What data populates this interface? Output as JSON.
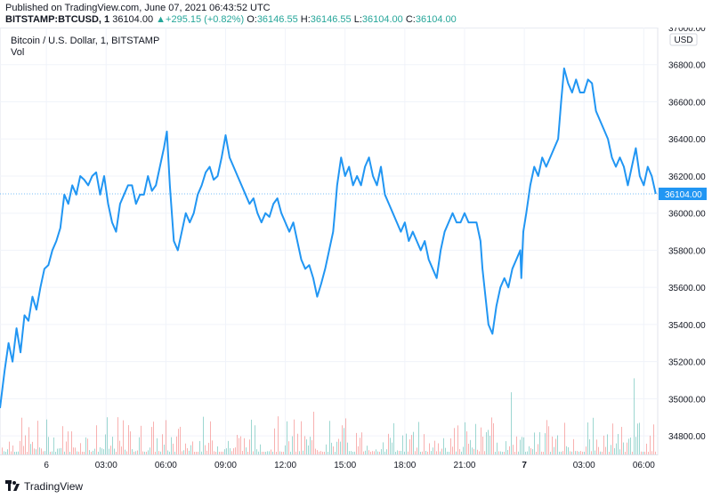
{
  "header": {
    "published": "Published on TradingView.com, June 07, 2021 06:43:52 UTC",
    "symbol": "BITSTAMP:BTCUSD, 1",
    "last": "36104.00",
    "change": "+295.15 (+0.82%)",
    "open_label": "O:",
    "open": "36146.55",
    "high_label": "H:",
    "high": "36146.55",
    "low_label": "L:",
    "low": "36104.00",
    "close_label": "C:",
    "close": "36104.00"
  },
  "legend": {
    "title": "Bitcoin / U.S. Dollar, 1, BITSTAMP",
    "vol": "Vol"
  },
  "brand": {
    "name": "TradingView"
  },
  "colors": {
    "line": "#2196f3",
    "up": "#26a69a",
    "down": "#ef5350",
    "grid": "#f0f3fa",
    "axis_text": "#131722"
  },
  "chart_data": {
    "type": "line",
    "title": "Bitcoin / U.S. Dollar, 1, BITSTAMP",
    "currency": "USD",
    "last_price": 36104.0,
    "last_price_label": "36104.00",
    "ylim": [
      34700,
      37000
    ],
    "y_ticks": [
      34800,
      35000,
      35200,
      35400,
      35600,
      35800,
      36000,
      36200,
      36400,
      36600,
      36800,
      37000
    ],
    "y_tick_labels": [
      "34800.00",
      "35000.00",
      "35200.00",
      "35400.00",
      "35600.00",
      "35800.00",
      "36000.00",
      "36200.00",
      "36400.00",
      "36600.00",
      "36800.00",
      "37000.00"
    ],
    "x_ticks": [
      {
        "t": 1.0,
        "label": "6",
        "bold": false
      },
      {
        "t": 4.0,
        "label": "03:00",
        "bold": false
      },
      {
        "t": 7.0,
        "label": "06:00",
        "bold": false
      },
      {
        "t": 10.0,
        "label": "09:00",
        "bold": false
      },
      {
        "t": 13.0,
        "label": "12:00",
        "bold": false
      },
      {
        "t": 16.0,
        "label": "15:00",
        "bold": false
      },
      {
        "t": 19.0,
        "label": "18:00",
        "bold": false
      },
      {
        "t": 22.0,
        "label": "21:00",
        "bold": false
      },
      {
        "t": 25.0,
        "label": "7",
        "bold": true
      },
      {
        "t": 28.0,
        "label": "03:00",
        "bold": false
      },
      {
        "t": 31.0,
        "label": "06:00",
        "bold": false
      }
    ],
    "xlim": [
      -1.33,
      31.7
    ],
    "series": [
      {
        "name": "BTCUSD",
        "points": [
          [
            -1.33,
            34950
          ],
          [
            -1.1,
            35150
          ],
          [
            -0.9,
            35300
          ],
          [
            -0.7,
            35200
          ],
          [
            -0.5,
            35380
          ],
          [
            -0.3,
            35250
          ],
          [
            -0.1,
            35450
          ],
          [
            0.1,
            35420
          ],
          [
            0.3,
            35550
          ],
          [
            0.5,
            35480
          ],
          [
            0.7,
            35600
          ],
          [
            0.9,
            35700
          ],
          [
            1.1,
            35720
          ],
          [
            1.3,
            35800
          ],
          [
            1.5,
            35850
          ],
          [
            1.7,
            35920
          ],
          [
            1.9,
            36100
          ],
          [
            2.1,
            36050
          ],
          [
            2.3,
            36150
          ],
          [
            2.5,
            36100
          ],
          [
            2.7,
            36200
          ],
          [
            2.9,
            36180
          ],
          [
            3.1,
            36150
          ],
          [
            3.3,
            36200
          ],
          [
            3.5,
            36220
          ],
          [
            3.7,
            36100
          ],
          [
            3.9,
            36200
          ],
          [
            4.1,
            36050
          ],
          [
            4.3,
            35950
          ],
          [
            4.5,
            35900
          ],
          [
            4.7,
            36050
          ],
          [
            4.9,
            36100
          ],
          [
            5.1,
            36150
          ],
          [
            5.3,
            36150
          ],
          [
            5.5,
            36050
          ],
          [
            5.7,
            36100
          ],
          [
            5.9,
            36100
          ],
          [
            6.1,
            36200
          ],
          [
            6.3,
            36120
          ],
          [
            6.5,
            36150
          ],
          [
            6.7,
            36250
          ],
          [
            6.9,
            36350
          ],
          [
            7.05,
            36440
          ],
          [
            7.2,
            36150
          ],
          [
            7.4,
            35850
          ],
          [
            7.6,
            35800
          ],
          [
            7.8,
            35900
          ],
          [
            8.0,
            36000
          ],
          [
            8.2,
            35950
          ],
          [
            8.4,
            36000
          ],
          [
            8.6,
            36100
          ],
          [
            8.8,
            36150
          ],
          [
            9.0,
            36220
          ],
          [
            9.2,
            36250
          ],
          [
            9.4,
            36180
          ],
          [
            9.6,
            36200
          ],
          [
            9.8,
            36300
          ],
          [
            10.0,
            36420
          ],
          [
            10.2,
            36300
          ],
          [
            10.4,
            36250
          ],
          [
            10.6,
            36200
          ],
          [
            10.8,
            36150
          ],
          [
            11.0,
            36100
          ],
          [
            11.2,
            36050
          ],
          [
            11.4,
            36080
          ],
          [
            11.6,
            36000
          ],
          [
            11.8,
            35950
          ],
          [
            12.0,
            36000
          ],
          [
            12.2,
            35980
          ],
          [
            12.4,
            36050
          ],
          [
            12.6,
            36080
          ],
          [
            12.8,
            36000
          ],
          [
            13.0,
            35950
          ],
          [
            13.2,
            35900
          ],
          [
            13.4,
            35950
          ],
          [
            13.6,
            35850
          ],
          [
            13.8,
            35750
          ],
          [
            14.0,
            35700
          ],
          [
            14.2,
            35720
          ],
          [
            14.4,
            35650
          ],
          [
            14.6,
            35550
          ],
          [
            14.8,
            35620
          ],
          [
            15.0,
            35700
          ],
          [
            15.2,
            35800
          ],
          [
            15.4,
            35900
          ],
          [
            15.5,
            36020
          ],
          [
            15.6,
            36150
          ],
          [
            15.8,
            36300
          ],
          [
            16.0,
            36200
          ],
          [
            16.2,
            36250
          ],
          [
            16.4,
            36150
          ],
          [
            16.6,
            36200
          ],
          [
            16.8,
            36150
          ],
          [
            17.0,
            36250
          ],
          [
            17.2,
            36300
          ],
          [
            17.4,
            36200
          ],
          [
            17.6,
            36150
          ],
          [
            17.8,
            36250
          ],
          [
            18.0,
            36100
          ],
          [
            18.2,
            36050
          ],
          [
            18.4,
            36000
          ],
          [
            18.6,
            35950
          ],
          [
            18.8,
            35900
          ],
          [
            19.0,
            35950
          ],
          [
            19.2,
            35850
          ],
          [
            19.4,
            35900
          ],
          [
            19.6,
            35850
          ],
          [
            19.8,
            35800
          ],
          [
            20.0,
            35850
          ],
          [
            20.2,
            35750
          ],
          [
            20.4,
            35700
          ],
          [
            20.6,
            35650
          ],
          [
            20.8,
            35800
          ],
          [
            21.0,
            35900
          ],
          [
            21.2,
            35950
          ],
          [
            21.4,
            36000
          ],
          [
            21.6,
            35950
          ],
          [
            21.8,
            35950
          ],
          [
            22.0,
            36000
          ],
          [
            22.2,
            35950
          ],
          [
            22.4,
            35950
          ],
          [
            22.6,
            35950
          ],
          [
            22.8,
            35850
          ],
          [
            22.9,
            35700
          ],
          [
            23.0,
            35600
          ],
          [
            23.2,
            35400
          ],
          [
            23.4,
            35350
          ],
          [
            23.6,
            35500
          ],
          [
            23.8,
            35600
          ],
          [
            24.0,
            35650
          ],
          [
            24.2,
            35600
          ],
          [
            24.4,
            35700
          ],
          [
            24.6,
            35750
          ],
          [
            24.8,
            35800
          ],
          [
            24.85,
            35650
          ],
          [
            24.95,
            35900
          ],
          [
            25.1,
            36000
          ],
          [
            25.3,
            36150
          ],
          [
            25.5,
            36250
          ],
          [
            25.7,
            36200
          ],
          [
            25.9,
            36300
          ],
          [
            26.1,
            36250
          ],
          [
            26.3,
            36300
          ],
          [
            26.5,
            36350
          ],
          [
            26.7,
            36400
          ],
          [
            26.85,
            36600
          ],
          [
            27.0,
            36780
          ],
          [
            27.2,
            36700
          ],
          [
            27.4,
            36650
          ],
          [
            27.6,
            36720
          ],
          [
            27.8,
            36650
          ],
          [
            28.0,
            36650
          ],
          [
            28.2,
            36720
          ],
          [
            28.4,
            36700
          ],
          [
            28.6,
            36550
          ],
          [
            28.8,
            36500
          ],
          [
            29.0,
            36450
          ],
          [
            29.2,
            36400
          ],
          [
            29.4,
            36300
          ],
          [
            29.6,
            36250
          ],
          [
            29.8,
            36300
          ],
          [
            30.0,
            36250
          ],
          [
            30.2,
            36150
          ],
          [
            30.4,
            36250
          ],
          [
            30.6,
            36350
          ],
          [
            30.8,
            36200
          ],
          [
            31.0,
            36150
          ],
          [
            31.2,
            36250
          ],
          [
            31.4,
            36200
          ],
          [
            31.6,
            36104
          ]
        ]
      }
    ]
  }
}
